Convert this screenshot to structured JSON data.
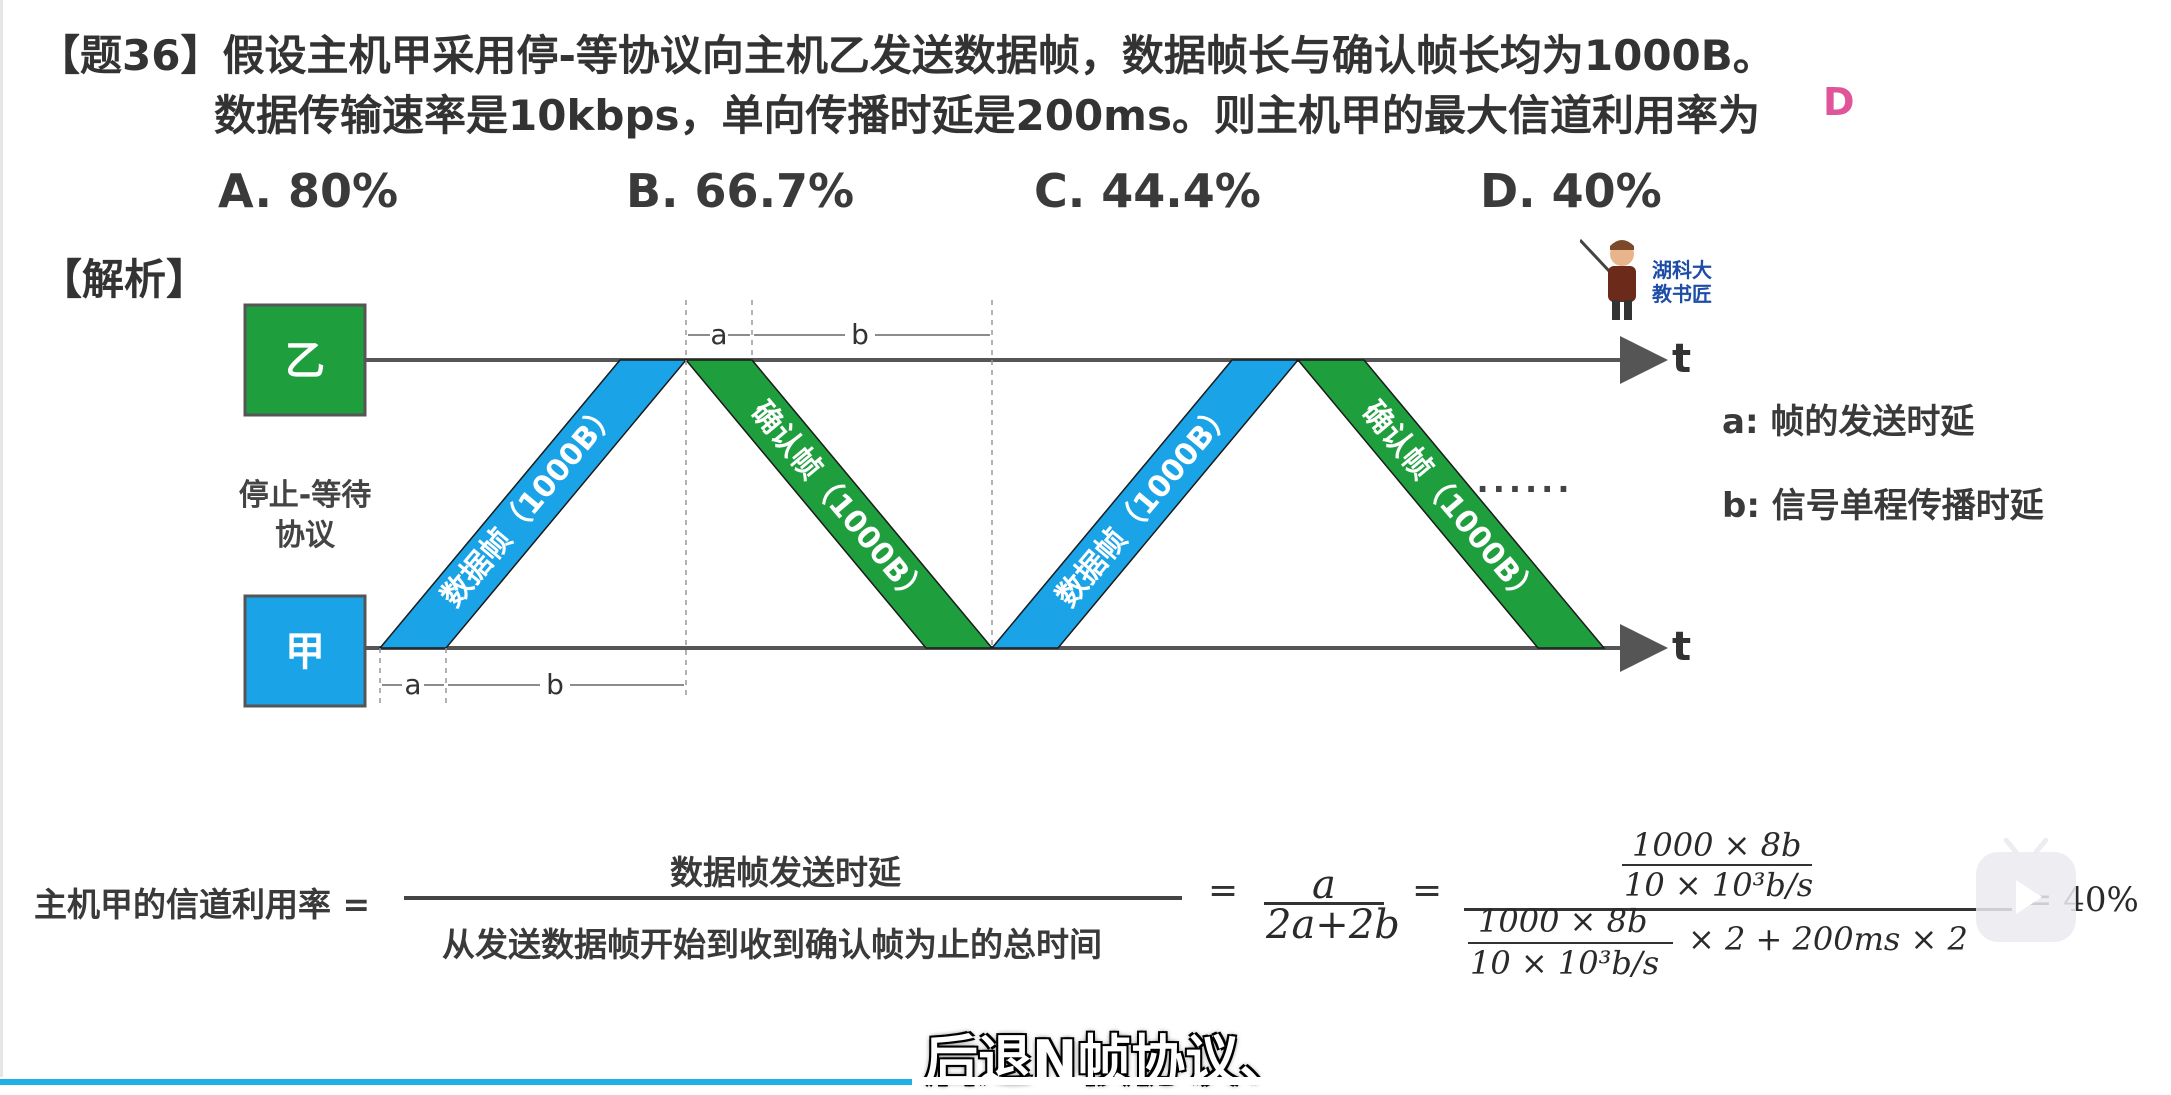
{
  "question": {
    "line1": "【题36】假设主机甲采用停-等协议向主机乙发送数据帧，数据帧长与确认帧长均为1000B。",
    "line2": "数据传输速率是10kbps，单向传播时延是200ms。则主机甲的最大信道利用率为",
    "answer": "D"
  },
  "options": [
    "A. 80%",
    "B. 66.7%",
    "C. 44.4%",
    "D. 40%"
  ],
  "analysis_label": "【解析】",
  "watermark": {
    "line1": "湖科大",
    "line2": "教书匠"
  },
  "diagram": {
    "host_b": "乙",
    "host_a": "甲",
    "protocol_line1": "停止-等待",
    "protocol_line2": "协议",
    "time_label": "t",
    "data_frame": "数据帧（1000B）",
    "ack_frame": "确认帧（1000B）",
    "dim_a": "a",
    "dim_b": "b",
    "ellipsis": "······",
    "colors": {
      "green": "#1f9e3e",
      "blue": "#1aa3e6",
      "axis": "#555555"
    }
  },
  "legend": {
    "a": "a: 帧的发送时延",
    "b": "b: 信号单程传播时延"
  },
  "formula": {
    "lhs": "主机甲的信道利用率 =",
    "numerator": "数据帧发送时延",
    "denominator": "从发送数据帧开始到收到确认帧为止的总时间",
    "eq": "=",
    "frac_num": "a",
    "frac_den": "2a+2b",
    "calc_num_top": "1000 × 8b",
    "calc_num_bottom": "10 × 10³b/s",
    "calc_den_top": "1000 × 8b",
    "calc_den_bottom": "10 × 10³b/s",
    "calc_den_tail": "× 2 + 200ms × 2",
    "result": "= 40%"
  },
  "subtitle": "后退N帧协议、",
  "video": {
    "progress_fraction": 0.42
  }
}
